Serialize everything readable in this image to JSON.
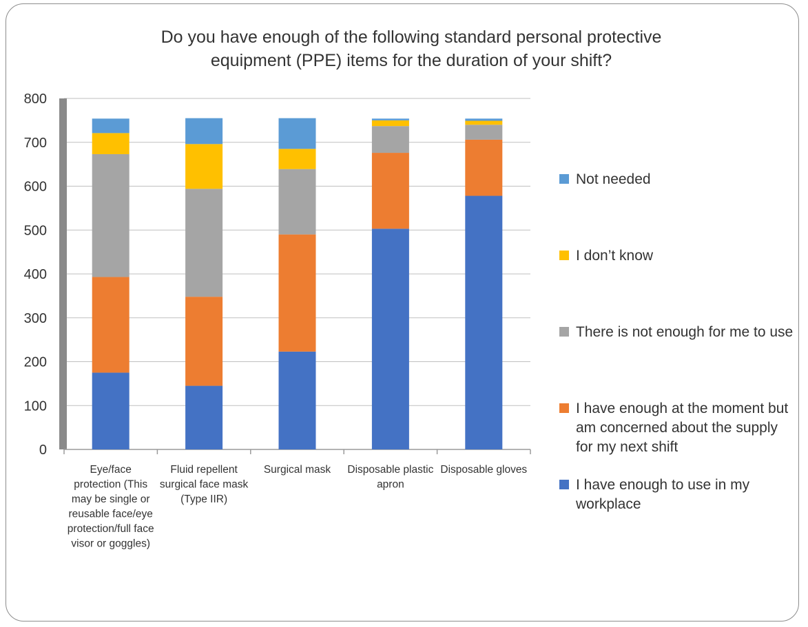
{
  "chart_data": {
    "type": "bar",
    "stacked": true,
    "title": "Do you have enough of the following standard personal protective equipment (PPE) items for the duration of your shift?",
    "categories": [
      "Eye/face protection (This may be single or reusable face/eye protection/full face visor or goggles)",
      "Fluid repellent surgical face mask (Type IIR)",
      "Surgical mask",
      "Disposable plastic apron",
      "Disposable gloves"
    ],
    "series": [
      {
        "name": "I have enough to use in my workplace",
        "color": "#4472C4",
        "values": [
          175,
          145,
          223,
          503,
          578
        ]
      },
      {
        "name": "I have enough at the moment but am concerned about the supply for my next shift",
        "color": "#ED7D31",
        "values": [
          218,
          203,
          267,
          173,
          128
        ]
      },
      {
        "name": "There is not enough for me to use",
        "color": "#A5A5A5",
        "values": [
          280,
          246,
          149,
          61,
          34
        ]
      },
      {
        "name": "I don’t know",
        "color": "#FFC000",
        "values": [
          48,
          102,
          46,
          13,
          9
        ]
      },
      {
        "name": "Not needed",
        "color": "#5B9BD5",
        "values": [
          33,
          59,
          70,
          4,
          5
        ]
      }
    ],
    "ylim": [
      0,
      800
    ],
    "yticks": [
      0,
      100,
      200,
      300,
      400,
      500,
      600,
      700,
      800
    ],
    "xlabel": "",
    "ylabel": "",
    "grid": true,
    "legend_position": "right"
  }
}
